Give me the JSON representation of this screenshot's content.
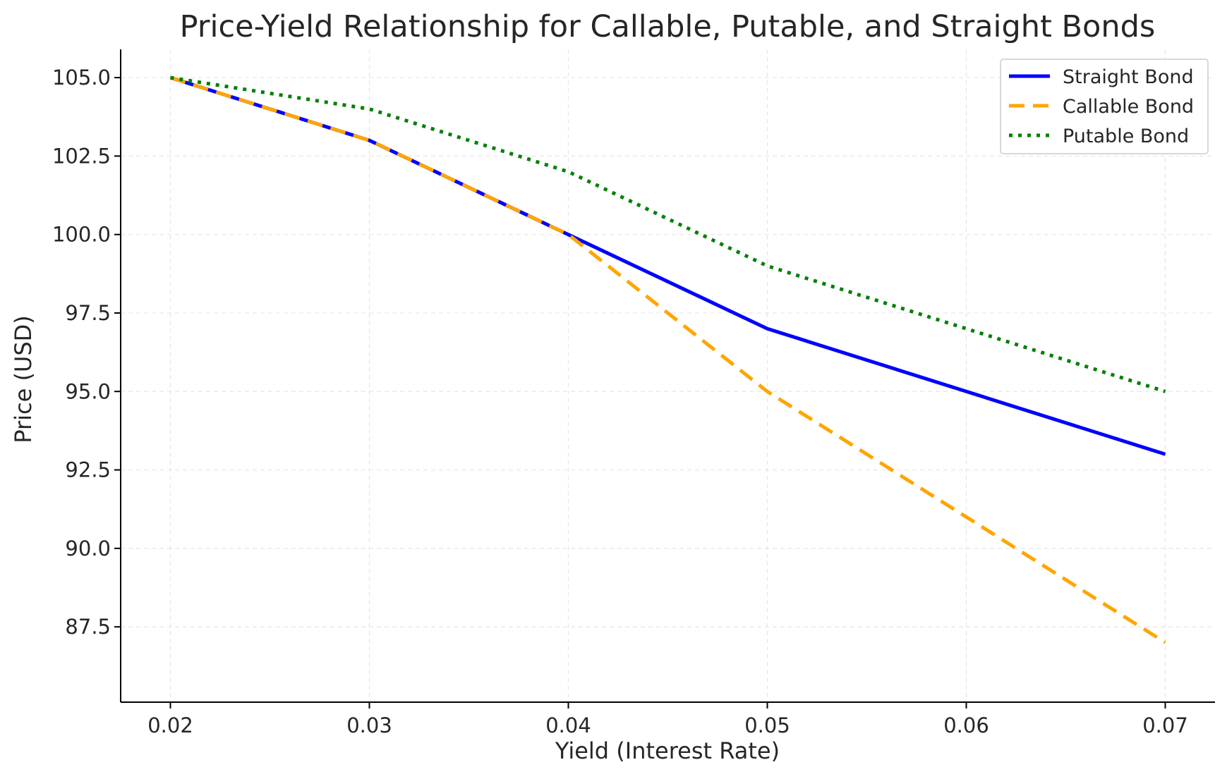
{
  "chart_data": {
    "type": "line",
    "title": "Price-Yield Relationship for Callable, Putable, and Straight Bonds",
    "xlabel": "Yield (Interest Rate)",
    "ylabel": "Price (USD)",
    "x": [
      0.02,
      0.03,
      0.04,
      0.05,
      0.06,
      0.07
    ],
    "x_tick_labels": [
      "0.02",
      "0.03",
      "0.04",
      "0.05",
      "0.06",
      "0.07"
    ],
    "y_tick_labels": [
      "87.5",
      "90.0",
      "92.5",
      "95.0",
      "97.5",
      "100.0",
      "102.5",
      "105.0"
    ],
    "y_ticks": [
      87.5,
      90.0,
      92.5,
      95.0,
      97.5,
      100.0,
      102.5,
      105.0
    ],
    "xlim": [
      0.0175,
      0.0725
    ],
    "ylim": [
      85.1,
      105.9
    ],
    "grid": true,
    "legend_position": "top-right",
    "series": [
      {
        "name": "Straight Bond",
        "values": [
          105,
          103,
          100,
          97,
          95,
          93
        ],
        "color": "#0000ff",
        "style": "solid"
      },
      {
        "name": "Callable Bond",
        "values": [
          105,
          103,
          100,
          95,
          91,
          87
        ],
        "color": "#ffa500",
        "style": "dashed"
      },
      {
        "name": "Putable Bond",
        "values": [
          105,
          104,
          102,
          99,
          97,
          95
        ],
        "color": "#008000",
        "style": "dotted"
      }
    ]
  }
}
